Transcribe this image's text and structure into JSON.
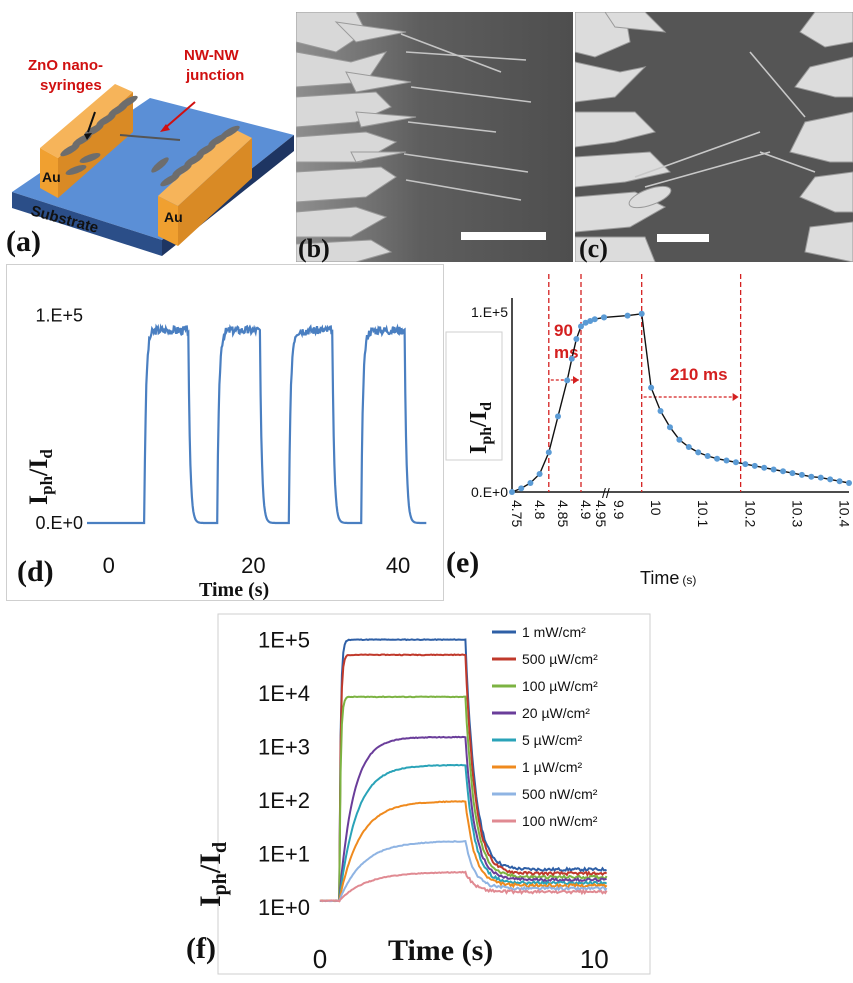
{
  "panel_labels": {
    "a": "(a)",
    "b": "(b)",
    "c": "(c)",
    "d": "(d)",
    "e": "(e)",
    "f": "(f)"
  },
  "schematic": {
    "nanosyringe_label_line1": "ZnO nano-",
    "nanosyringe_label_line2": "syringes",
    "junction_label_line1": "NW-NW",
    "junction_label_line2": "junction",
    "electrode_left": "Au",
    "electrode_right": "Au",
    "substrate": "Substrate",
    "colors": {
      "substrate": "#5b8fd6",
      "electrode": "#f0a030",
      "label": "#d01010"
    }
  },
  "chart_data": [
    {
      "id": "d",
      "type": "line",
      "xlabel": "Time (s)",
      "ylabel_main": "I",
      "ylabel_sub1": "ph",
      "ylabel_sep": "/I",
      "ylabel_sub2": "d",
      "x_ticks": [
        "0",
        "20",
        "40"
      ],
      "x_tick_values": [
        0,
        20,
        40
      ],
      "y_ticks": [
        "0.E+0",
        "1.E+5"
      ],
      "y_tick_values": [
        0,
        100000
      ],
      "xlim": [
        -3,
        44
      ],
      "ylim": [
        0,
        110000
      ],
      "color": "#4a7fc1",
      "on_intervals": [
        [
          5,
          11
        ],
        [
          15,
          21
        ],
        [
          25,
          31
        ],
        [
          35,
          41
        ]
      ],
      "on_level": 93000,
      "off_level": 0
    },
    {
      "id": "e",
      "type": "line",
      "xlabel_main": "Time",
      "xlabel_unit": "(s)",
      "ylabel_main": "I",
      "ylabel_sub1": "ph",
      "ylabel_sep": "/I",
      "ylabel_sub2": "d",
      "x_ticks": [
        "4.75",
        "4.8",
        "4.85",
        "4.9",
        "4.95",
        "9.9",
        "10",
        "10.1",
        "10.2",
        "10.3",
        "10.4"
      ],
      "y_ticks": [
        "0.E+0",
        "1.E+5"
      ],
      "rise_label_line1": "90",
      "rise_label_line2": "ms",
      "decay_label": "210 ms",
      "annotation_color": "#d42020",
      "marker_color": "#5b9bd5",
      "rise_x": [
        4.75,
        4.77,
        4.79,
        4.81,
        4.83,
        4.85,
        4.87,
        4.88,
        4.89,
        4.9,
        4.91,
        4.92,
        4.93,
        4.95
      ],
      "rise_y": [
        0,
        2000,
        5000,
        10000,
        22000,
        42000,
        62000,
        74000,
        85000,
        92000,
        94000,
        95000,
        96000,
        97000
      ],
      "decay_x": [
        9.9,
        9.95,
        9.98,
        10.0,
        10.02,
        10.04,
        10.06,
        10.08,
        10.1,
        10.12,
        10.14,
        10.16,
        10.18,
        10.2,
        10.22,
        10.24,
        10.26,
        10.28,
        10.3,
        10.32,
        10.34,
        10.36,
        10.38,
        10.4,
        10.42
      ],
      "decay_y": [
        97000,
        98000,
        99000,
        58000,
        45000,
        36000,
        29000,
        25000,
        22000,
        20000,
        18500,
        17500,
        16500,
        15500,
        14500,
        13500,
        12500,
        11500,
        10500,
        9500,
        8500,
        8000,
        7000,
        6000,
        5000
      ]
    },
    {
      "id": "f",
      "type": "line",
      "scale": "log",
      "xlabel": "Time (s)",
      "ylabel_main": "I",
      "ylabel_sub1": "ph",
      "ylabel_sep": "/I",
      "ylabel_sub2": "d",
      "x_ticks": [
        "0",
        "10"
      ],
      "x_tick_values": [
        0,
        10
      ],
      "y_ticks": [
        "1E+0",
        "1E+1",
        "1E+2",
        "1E+3",
        "1E+4",
        "1E+5"
      ],
      "y_tick_values": [
        1,
        10,
        100,
        1000,
        10000,
        100000
      ],
      "xlim": [
        0,
        10.5
      ],
      "ylim": [
        0.8,
        180000
      ],
      "t_on": 0.7,
      "t_off": 5.3,
      "series": [
        {
          "name": "1 mW/cm²",
          "color": "#2e5fa6",
          "peak": 100000,
          "tail": 5
        },
        {
          "name": "500 µW/cm²",
          "color": "#c0392b",
          "peak": 52000,
          "tail": 4.2
        },
        {
          "name": "100 µW/cm²",
          "color": "#7cb342",
          "peak": 8500,
          "tail": 3.6
        },
        {
          "name": "20 µW/cm²",
          "color": "#6a3d9a",
          "peak": 1500,
          "tail": 3.2
        },
        {
          "name": "5 µW/cm²",
          "color": "#2aa3b8",
          "peak": 450,
          "tail": 2.8
        },
        {
          "name": "1 µW/cm²",
          "color": "#ef8a1e",
          "peak": 95,
          "tail": 2.5
        },
        {
          "name": "500 nW/cm²",
          "color": "#8fb4e3",
          "peak": 17,
          "tail": 2.2
        },
        {
          "name": "100 nW/cm²",
          "color": "#e08a92",
          "peak": 4.5,
          "tail": 1.9
        }
      ]
    }
  ]
}
